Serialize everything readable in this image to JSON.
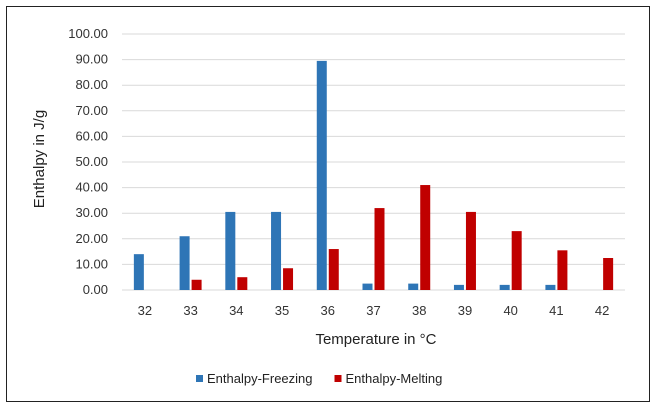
{
  "chart_data": {
    "type": "bar",
    "xlabel": "Temperature in °C",
    "ylabel": "Enthalpy in J/g",
    "ylim": [
      0,
      100
    ],
    "y_ticks": [
      "0.00",
      "10.00",
      "20.00",
      "30.00",
      "40.00",
      "50.00",
      "60.00",
      "70.00",
      "80.00",
      "90.00",
      "100.00"
    ],
    "categories": [
      "32",
      "33",
      "34",
      "35",
      "36",
      "37",
      "38",
      "39",
      "40",
      "41",
      "42"
    ],
    "series": [
      {
        "name": "Enthalpy-Freezing",
        "color": "#2E75B6",
        "values": [
          14,
          21,
          30.5,
          30.5,
          89.5,
          2.5,
          2.5,
          2,
          2,
          2,
          0
        ]
      },
      {
        "name": "Enthalpy-Melting",
        "color": "#C00000",
        "values": [
          0,
          4,
          5,
          8.5,
          16,
          32,
          41,
          30.5,
          23,
          15.5,
          12.5
        ]
      }
    ],
    "grid": "horizontal",
    "legend_position": "bottom"
  }
}
